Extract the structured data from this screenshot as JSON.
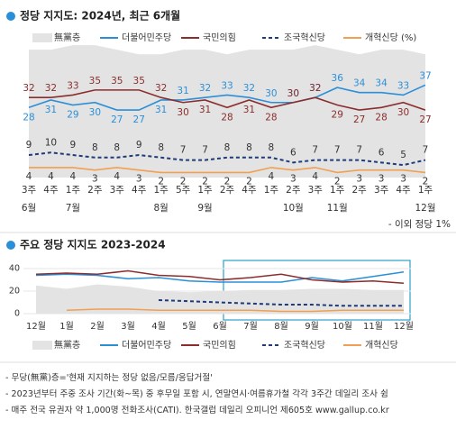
{
  "chart_data": [
    {
      "type": "line",
      "title": "정당 지지도: 2024년, 최근 6개월",
      "categories": [
        "3주",
        "4주",
        "1주",
        "2주",
        "3주",
        "4주",
        "1주",
        "5주",
        "1주",
        "2주",
        "4주",
        "1주",
        "2주",
        "3주",
        "1주",
        "2주",
        "3주",
        "4주",
        "1주"
      ],
      "months": [
        "6월",
        null,
        "7월",
        null,
        null,
        null,
        "8월",
        null,
        "9월",
        null,
        null,
        null,
        "10월",
        null,
        "11월",
        null,
        null,
        null,
        "12월"
      ],
      "ylim": [
        0,
        40
      ],
      "y2lim": [
        0,
        30
      ],
      "note": "- 이외 정당 1%",
      "series": [
        {
          "name": "無黨층",
          "color": "#e3e3e3",
          "style": "area",
          "axis": "y2",
          "values": [
            28,
            28,
            29,
            29,
            28,
            27,
            27,
            28,
            28,
            27,
            28,
            28,
            28,
            29,
            28,
            27,
            28,
            28,
            27
          ]
        },
        {
          "name": "더불어민주당",
          "color": "#2b8fd8",
          "style": "solid",
          "values": [
            28,
            31,
            29,
            30,
            27,
            27,
            31,
            31,
            32,
            33,
            32,
            30,
            30,
            32,
            36,
            34,
            34,
            33,
            37
          ]
        },
        {
          "name": "국민의힘",
          "color": "#8b2d2d",
          "style": "solid",
          "values": [
            32,
            32,
            33,
            35,
            35,
            35,
            32,
            30,
            31,
            28,
            31,
            28,
            30,
            32,
            29,
            27,
            28,
            30,
            27
          ]
        },
        {
          "name": "조국혁신당",
          "color": "#1f3b78",
          "style": "dashed",
          "values": [
            9,
            10,
            9,
            8,
            8,
            9,
            8,
            7,
            7,
            8,
            8,
            8,
            6,
            7,
            7,
            7,
            6,
            5,
            7
          ]
        },
        {
          "name": "개혁신당 (%)",
          "color": "#f0a050",
          "style": "solid",
          "values": [
            4,
            4,
            4,
            3,
            4,
            3,
            2,
            2,
            2,
            2,
            2,
            4,
            3,
            4,
            2,
            3,
            3,
            3,
            2
          ]
        }
      ]
    },
    {
      "type": "line",
      "title": "주요 정당 지지도 2023-2024",
      "categories": [
        "12월",
        "1월",
        "2월",
        "3월",
        "4월",
        "5월",
        "6월",
        "7월",
        "8월",
        "9월",
        "10월",
        "11월",
        "12월"
      ],
      "ylim": [
        0,
        40
      ],
      "yticks": [
        0,
        20,
        40
      ],
      "y2lim": [
        0,
        40
      ],
      "series": [
        {
          "name": "無黨층",
          "color": "#e3e3e3",
          "style": "area",
          "axis": "y2",
          "values": [
            25,
            22,
            26,
            24,
            20,
            19,
            20,
            21,
            21,
            22,
            22,
            21,
            21
          ]
        },
        {
          "name": "더불어민주당",
          "color": "#2b8fd8",
          "style": "solid",
          "values": [
            34,
            35,
            34,
            31,
            32,
            29,
            28,
            28,
            28,
            32,
            29,
            33,
            37
          ]
        },
        {
          "name": "국민의힘",
          "color": "#8b2d2d",
          "style": "solid",
          "values": [
            35,
            36,
            35,
            38,
            34,
            33,
            30,
            32,
            35,
            30,
            28,
            29,
            27
          ]
        },
        {
          "name": "조국혁신당",
          "color": "#1f3b78",
          "style": "dashed",
          "values": [
            null,
            null,
            null,
            null,
            12,
            11,
            10,
            9,
            8,
            8,
            7,
            7,
            7
          ]
        },
        {
          "name": "개혁신당",
          "color": "#f0a050",
          "style": "solid",
          "values": [
            null,
            3,
            4,
            4,
            3,
            3,
            3,
            3,
            2,
            2,
            3,
            3,
            3
          ]
        }
      ]
    }
  ],
  "notes": [
    "- 무당(無黨)층='현재 지지하는 정당 없음/모름/응답거절'",
    "- 2023년부터 주중 조사 기간(화~목) 중 후무일 포함 시, 연말연시·여름휴가철 각각 3주간 데일리 조사 쉼",
    "- 매주 전국 유권자 약 1,000명 전화조사(CATI). 한국갤럽 데일리 오피니언 제605호 www.gallup.co.kr"
  ]
}
